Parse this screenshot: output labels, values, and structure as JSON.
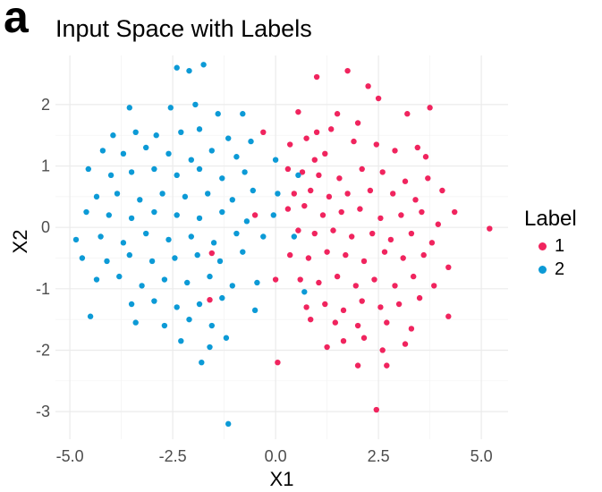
{
  "panel_label": "a",
  "chart_data": {
    "type": "scatter",
    "title": "Input Space with Labels",
    "xlabel": "X1",
    "ylabel": "X2",
    "xlim": [
      -5.35,
      5.65
    ],
    "ylim": [
      -3.45,
      2.8
    ],
    "xticks": [
      -5.0,
      -2.5,
      0.0,
      2.5,
      5.0
    ],
    "xtick_labels": [
      "-5.0",
      "-2.5",
      "0.0",
      "2.5",
      "5.0"
    ],
    "yticks": [
      -3,
      -2,
      -1,
      0,
      1,
      2
    ],
    "ytick_labels": [
      "-3",
      "-2",
      "-1",
      "0",
      "1",
      "2"
    ],
    "grid": true,
    "legend": {
      "title": "Label",
      "position": "right"
    },
    "series": [
      {
        "name": "1",
        "color": "#f0245e",
        "points": [
          [
            1.0,
            2.45
          ],
          [
            1.75,
            2.55
          ],
          [
            2.5,
            2.1
          ],
          [
            2.25,
            2.3
          ],
          [
            1.5,
            1.85
          ],
          [
            0.55,
            1.88
          ],
          [
            0.75,
            1.45
          ],
          [
            1.0,
            1.55
          ],
          [
            1.35,
            1.6
          ],
          [
            2.0,
            1.7
          ],
          [
            3.2,
            1.85
          ],
          [
            3.75,
            1.95
          ],
          [
            2.9,
            1.25
          ],
          [
            0.35,
            1.35
          ],
          [
            0.95,
            1.1
          ],
          [
            1.2,
            1.2
          ],
          [
            1.9,
            1.4
          ],
          [
            2.45,
            1.35
          ],
          [
            3.45,
            1.3
          ],
          [
            3.65,
            1.15
          ],
          [
            0.3,
            0.95
          ],
          [
            0.65,
            0.9
          ],
          [
            1.05,
            0.85
          ],
          [
            1.55,
            0.8
          ],
          [
            2.1,
            0.95
          ],
          [
            2.6,
            0.9
          ],
          [
            3.15,
            0.75
          ],
          [
            3.7,
            0.8
          ],
          [
            0.45,
            0.55
          ],
          [
            0.85,
            0.6
          ],
          [
            1.3,
            0.5
          ],
          [
            1.75,
            0.55
          ],
          [
            2.3,
            0.6
          ],
          [
            2.85,
            0.55
          ],
          [
            3.4,
            0.45
          ],
          [
            4.05,
            0.6
          ],
          [
            4.35,
            0.25
          ],
          [
            0.3,
            0.3
          ],
          [
            0.7,
            0.35
          ],
          [
            1.15,
            0.2
          ],
          [
            1.6,
            0.25
          ],
          [
            2.05,
            0.3
          ],
          [
            2.55,
            0.15
          ],
          [
            3.05,
            0.2
          ],
          [
            3.55,
            0.25
          ],
          [
            3.95,
            0.05
          ],
          [
            0.55,
            -0.05
          ],
          [
            0.95,
            -0.1
          ],
          [
            1.4,
            -0.05
          ],
          [
            1.85,
            -0.15
          ],
          [
            2.35,
            -0.1
          ],
          [
            2.8,
            -0.2
          ],
          [
            3.3,
            -0.1
          ],
          [
            3.8,
            -0.25
          ],
          [
            5.2,
            -0.02
          ],
          [
            0.35,
            -0.45
          ],
          [
            0.8,
            -0.5
          ],
          [
            1.25,
            -0.4
          ],
          [
            1.7,
            -0.45
          ],
          [
            2.15,
            -0.55
          ],
          [
            2.65,
            -0.4
          ],
          [
            3.1,
            -0.5
          ],
          [
            3.6,
            -0.45
          ],
          [
            4.2,
            -0.65
          ],
          [
            0.6,
            -0.85
          ],
          [
            1.05,
            -0.9
          ],
          [
            1.5,
            -0.8
          ],
          [
            1.95,
            -0.95
          ],
          [
            2.4,
            -0.85
          ],
          [
            2.9,
            -0.95
          ],
          [
            3.35,
            -0.8
          ],
          [
            3.85,
            -0.95
          ],
          [
            0.0,
            -0.85
          ],
          [
            0.75,
            -1.3
          ],
          [
            1.2,
            -1.25
          ],
          [
            1.65,
            -1.35
          ],
          [
            2.1,
            -1.2
          ],
          [
            2.55,
            -1.3
          ],
          [
            3.0,
            -1.25
          ],
          [
            3.5,
            -1.15
          ],
          [
            0.85,
            -1.5
          ],
          [
            1.45,
            -1.55
          ],
          [
            2.0,
            -1.6
          ],
          [
            2.7,
            -1.55
          ],
          [
            3.3,
            -1.65
          ],
          [
            4.2,
            -1.45
          ],
          [
            1.25,
            -1.95
          ],
          [
            1.65,
            -1.85
          ],
          [
            2.15,
            -1.8
          ],
          [
            2.6,
            -2.0
          ],
          [
            3.15,
            -1.9
          ],
          [
            0.05,
            -2.2
          ],
          [
            2.0,
            -2.25
          ],
          [
            2.7,
            -2.25
          ],
          [
            2.45,
            -2.97
          ],
          [
            -1.55,
            -0.42
          ],
          [
            -1.6,
            -1.18
          ],
          [
            -0.5,
            0.2
          ],
          [
            -0.3,
            1.55
          ]
        ]
      },
      {
        "name": "2",
        "color": "#0c9ad6",
        "points": [
          [
            -2.4,
            2.6
          ],
          [
            -2.1,
            2.55
          ],
          [
            -1.75,
            2.65
          ],
          [
            -1.95,
            2.0
          ],
          [
            -2.55,
            1.95
          ],
          [
            -3.55,
            1.95
          ],
          [
            -1.4,
            1.85
          ],
          [
            -0.8,
            1.85
          ],
          [
            -3.95,
            1.5
          ],
          [
            -3.4,
            1.55
          ],
          [
            -2.9,
            1.5
          ],
          [
            -2.3,
            1.55
          ],
          [
            -1.85,
            1.6
          ],
          [
            -1.15,
            1.45
          ],
          [
            -0.6,
            1.4
          ],
          [
            -4.2,
            1.25
          ],
          [
            -3.7,
            1.2
          ],
          [
            -3.15,
            1.3
          ],
          [
            -2.6,
            1.2
          ],
          [
            -2.05,
            1.1
          ],
          [
            -1.55,
            1.25
          ],
          [
            -0.95,
            1.15
          ],
          [
            -4.55,
            0.95
          ],
          [
            -4.0,
            0.85
          ],
          [
            -3.5,
            0.9
          ],
          [
            -2.95,
            0.95
          ],
          [
            -2.4,
            0.85
          ],
          [
            -1.85,
            0.95
          ],
          [
            -1.3,
            0.8
          ],
          [
            -0.75,
            0.9
          ],
          [
            -4.35,
            0.5
          ],
          [
            -3.85,
            0.55
          ],
          [
            -3.3,
            0.45
          ],
          [
            -2.75,
            0.55
          ],
          [
            -2.2,
            0.5
          ],
          [
            -1.65,
            0.55
          ],
          [
            -1.05,
            0.45
          ],
          [
            -0.55,
            0.6
          ],
          [
            -4.6,
            0.25
          ],
          [
            -4.05,
            0.2
          ],
          [
            -3.5,
            0.15
          ],
          [
            -2.95,
            0.25
          ],
          [
            -2.4,
            0.2
          ],
          [
            -1.85,
            0.15
          ],
          [
            -1.3,
            0.25
          ],
          [
            -0.7,
            0.1
          ],
          [
            -0.05,
            0.2
          ],
          [
            -4.85,
            -0.2
          ],
          [
            -4.25,
            -0.15
          ],
          [
            -3.7,
            -0.25
          ],
          [
            -3.15,
            -0.1
          ],
          [
            -2.6,
            -0.2
          ],
          [
            -2.05,
            -0.15
          ],
          [
            -1.5,
            -0.25
          ],
          [
            -0.95,
            -0.1
          ],
          [
            -0.3,
            -0.15
          ],
          [
            0.45,
            -0.15
          ],
          [
            -4.7,
            -0.5
          ],
          [
            -4.1,
            -0.55
          ],
          [
            -3.55,
            -0.45
          ],
          [
            -3.0,
            -0.55
          ],
          [
            -2.45,
            -0.5
          ],
          [
            -1.9,
            -0.45
          ],
          [
            -1.35,
            -0.55
          ],
          [
            -0.8,
            -0.4
          ],
          [
            -4.35,
            -0.85
          ],
          [
            -3.8,
            -0.8
          ],
          [
            -3.25,
            -0.95
          ],
          [
            -2.7,
            -0.85
          ],
          [
            -2.15,
            -0.9
          ],
          [
            -1.6,
            -0.8
          ],
          [
            -1.05,
            -0.95
          ],
          [
            -0.45,
            -0.9
          ],
          [
            -3.5,
            -1.25
          ],
          [
            -2.95,
            -1.2
          ],
          [
            -2.4,
            -1.3
          ],
          [
            -1.85,
            -1.25
          ],
          [
            -1.3,
            -1.15
          ],
          [
            -0.5,
            -1.35
          ],
          [
            0.7,
            -1.05
          ],
          [
            -4.5,
            -1.45
          ],
          [
            -3.4,
            -1.55
          ],
          [
            -2.7,
            -1.6
          ],
          [
            -2.1,
            -1.5
          ],
          [
            -1.55,
            -1.6
          ],
          [
            -2.3,
            -1.85
          ],
          [
            -1.6,
            -1.95
          ],
          [
            -1.2,
            -1.8
          ],
          [
            -1.8,
            -2.2
          ],
          [
            -1.15,
            -3.2
          ],
          [
            0.05,
            0.55
          ],
          [
            0.55,
            0.85
          ],
          [
            0.0,
            1.1
          ]
        ]
      }
    ]
  }
}
